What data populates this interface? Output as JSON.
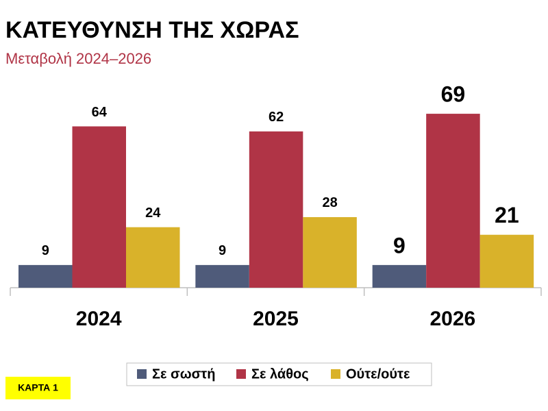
{
  "chart_data": {
    "type": "bar",
    "title": "ΚΑΤΕΥΘΥΝΣΗ ΤΗΣ ΧΩΡΑΣ",
    "subtitle": "Μεταβολή 2024–2026",
    "categories": [
      "2024",
      "2025",
      "2026"
    ],
    "series": [
      {
        "name": "Σε σωστή",
        "color": "#4f5b7a",
        "values": [
          9,
          9,
          9
        ]
      },
      {
        "name": "Σε λάθος",
        "color": "#b03446",
        "values": [
          64,
          62,
          69
        ]
      },
      {
        "name": "Ούτε/ούτε",
        "color": "#d9b22a",
        "values": [
          24,
          28,
          21
        ]
      }
    ],
    "annotation": "ΚΑΡΤΑ 1"
  }
}
